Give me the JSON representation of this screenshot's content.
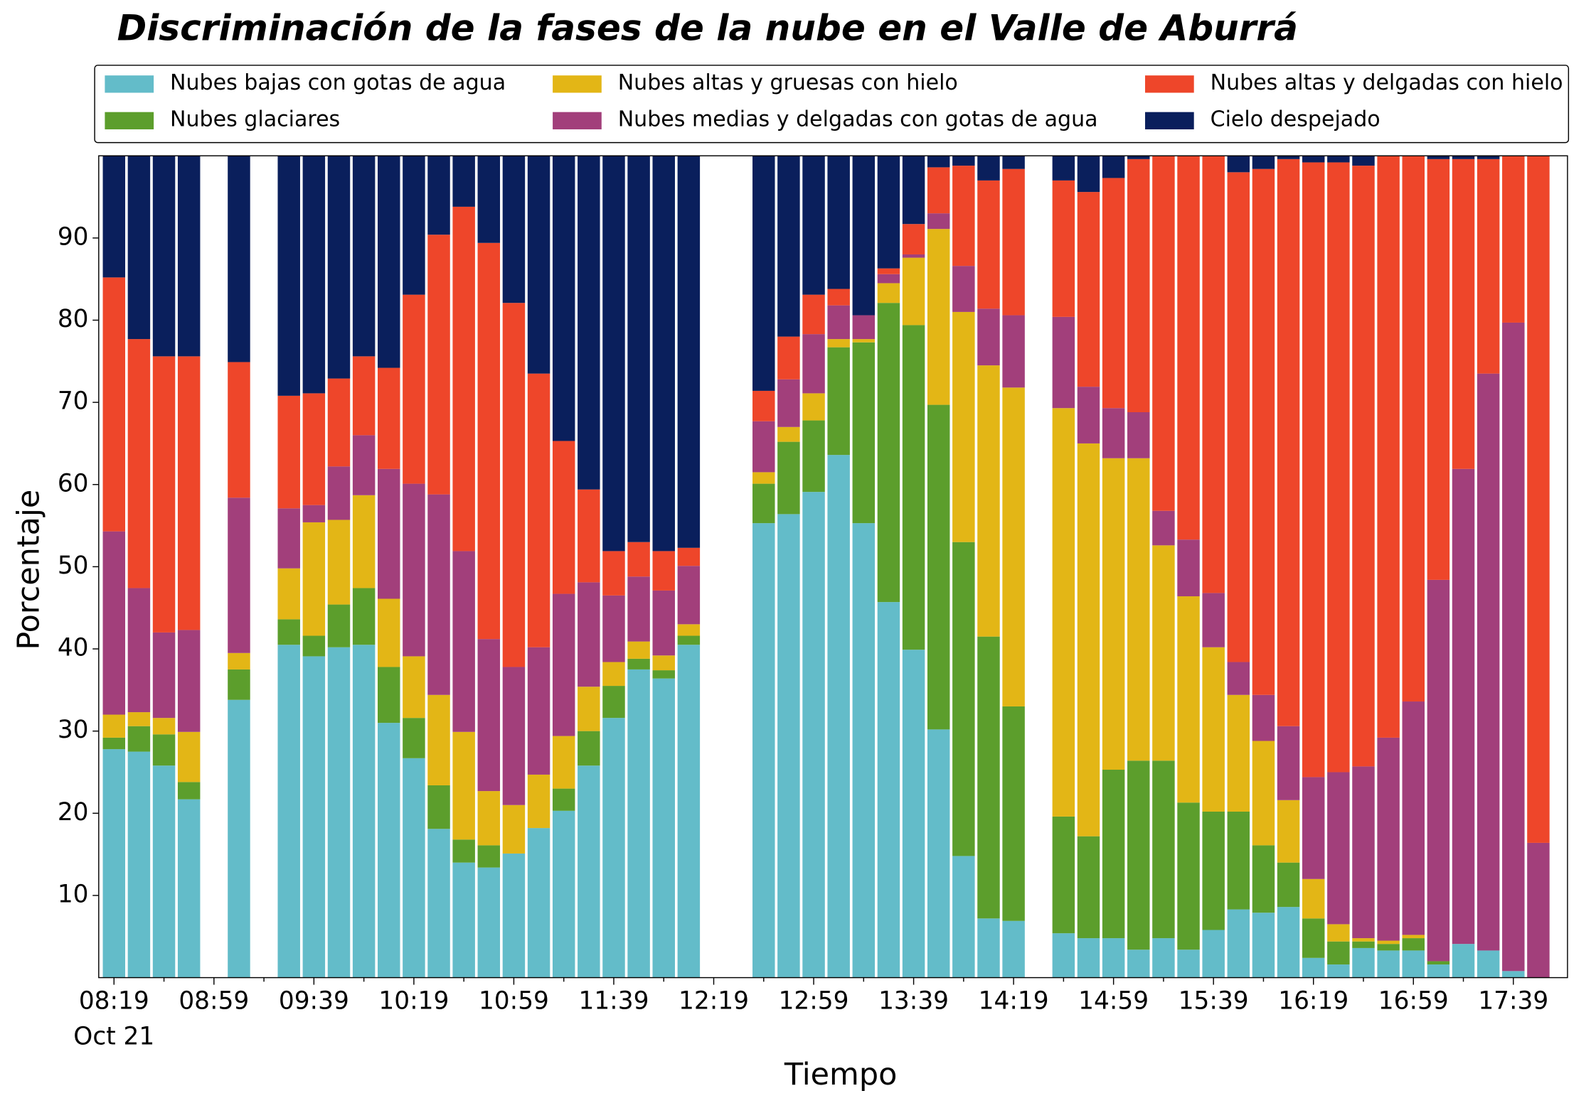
{
  "chart_data": {
    "type": "stacked_bar",
    "title": "Discriminación de la fases de la nube en el Valle de Aburrá",
    "x_label": "Tiempo",
    "y_label": "Porcentaje",
    "x_date_label": "Oct 21",
    "categories": [
      "08:19",
      null,
      null,
      null,
      "08:59",
      null,
      null,
      null,
      "09:39",
      null,
      null,
      null,
      "10:19",
      null,
      null,
      null,
      "10:59",
      null,
      null,
      null,
      "11:39",
      null,
      null,
      null,
      "12:19",
      null,
      null,
      null,
      "12:59",
      null,
      null,
      null,
      "13:39",
      null,
      null,
      null,
      "14:19",
      null,
      null,
      null,
      "14:59",
      null,
      null,
      null,
      "15:39",
      null,
      null,
      null,
      "16:19",
      null,
      null,
      null,
      "16:59",
      null,
      null,
      null,
      "17:39",
      null
    ],
    "ylim": [
      0,
      100
    ],
    "yticks": [
      10,
      20,
      30,
      40,
      50,
      60,
      70,
      80,
      90
    ],
    "legend": "top",
    "series": [
      {
        "name": "Nubes bajas con gotas de agua",
        "color": "#63bcc9",
        "values": [
          27.8,
          27.5,
          25.8,
          21.7,
          null,
          33.8,
          null,
          40.5,
          39.1,
          40.2,
          40.5,
          31,
          26.7,
          18.1,
          14.0,
          13.4,
          15.1,
          18.2,
          20.3,
          25.8,
          31.6,
          37.5,
          36.4,
          40.5,
          null,
          null,
          55.3,
          56.4,
          59.1,
          63.6,
          55.3,
          45.7,
          39.9,
          30.2,
          14.8,
          7.2,
          6.9,
          null,
          5.4,
          4.8,
          4.8,
          3.4,
          4.8,
          3.4,
          5.8,
          8.3,
          7.9,
          8.6,
          2.4,
          1.6,
          3.6,
          3.3,
          3.3,
          1.6,
          4.1,
          3.3,
          0.8,
          0
        ]
      },
      {
        "name": "Nubes glaciares",
        "color": "#5c9e2c",
        "values": [
          1.4,
          3.1,
          3.8,
          2.1,
          null,
          3.7,
          null,
          3.1,
          2.5,
          5.2,
          6.9,
          6.8,
          4.9,
          5.3,
          2.8,
          2.7,
          0,
          0,
          2.7,
          4.2,
          3.9,
          1.3,
          1.0,
          1.1,
          null,
          null,
          4.8,
          8.8,
          8.7,
          13.1,
          22.0,
          36.4,
          39.5,
          39.5,
          38.2,
          34.3,
          26.1,
          null,
          14.2,
          12.4,
          20.5,
          23.0,
          21.6,
          17.9,
          14.4,
          11.9,
          8.2,
          5.4,
          4.8,
          2.8,
          0.8,
          0.8,
          1.5,
          0.4,
          0,
          0,
          0,
          0
        ]
      },
      {
        "name": "Nubes altas y gruesas con hielo",
        "color": "#e3b616",
        "values": [
          2.8,
          1.7,
          2.0,
          6.1,
          null,
          2.0,
          null,
          6.2,
          13.8,
          10.3,
          11.3,
          8.3,
          7.5,
          11.0,
          13.1,
          6.6,
          5.9,
          6.5,
          6.4,
          5.4,
          2.9,
          2.1,
          1.8,
          1.4,
          null,
          null,
          1.4,
          1.8,
          3.3,
          1.0,
          0.4,
          2.4,
          8.2,
          21.4,
          28.0,
          33.0,
          38.8,
          null,
          49.7,
          47.8,
          37.9,
          36.8,
          26.2,
          25.1,
          20.0,
          14.2,
          12.7,
          7.6,
          4.8,
          2.1,
          0.4,
          0.4,
          0.4,
          0,
          0,
          0,
          0,
          0
        ]
      },
      {
        "name": "Nubes medias y delgadas con gotas de agua",
        "color": "#a23f7b",
        "values": [
          22.3,
          15.1,
          10.4,
          12.4,
          null,
          18.9,
          null,
          7.3,
          2.1,
          6.5,
          7.3,
          15.8,
          21.0,
          24.4,
          22.0,
          18.5,
          16.8,
          15.5,
          17.3,
          12.7,
          8.1,
          7.9,
          7.9,
          7.1,
          null,
          null,
          6.2,
          5.8,
          7.2,
          4.1,
          2.9,
          1.1,
          0.4,
          1.9,
          5.6,
          6.9,
          8.8,
          null,
          11.1,
          6.9,
          6.1,
          5.6,
          4.2,
          6.9,
          6.6,
          4.0,
          5.6,
          9.0,
          12.4,
          18.5,
          20.9,
          24.7,
          28.4,
          46.4,
          57.8,
          70.2,
          78.9,
          16.4
        ]
      },
      {
        "name": "Nubes altas y delgadas con hielo",
        "color": "#ee462a",
        "values": [
          30.9,
          30.3,
          33.6,
          33.3,
          null,
          16.5,
          null,
          13.7,
          13.6,
          10.7,
          9.6,
          12.3,
          23.0,
          31.6,
          41.9,
          48.2,
          44.3,
          33.3,
          18.6,
          11.3,
          5.4,
          4.2,
          4.8,
          2.2,
          null,
          null,
          3.7,
          5.2,
          4.8,
          2.0,
          0,
          0.7,
          3.7,
          5.6,
          12.2,
          15.6,
          17.8,
          null,
          16.6,
          23.7,
          28.0,
          30.8,
          43.2,
          46.7,
          53.2,
          59.6,
          64.0,
          69.0,
          74.8,
          74.2,
          73.1,
          70.8,
          66.4,
          51.2,
          37.7,
          26.1,
          20.3,
          83.6
        ]
      },
      {
        "name": "Cielo despejado",
        "color": "#0a1f5c",
        "values": [
          14.8,
          22.3,
          24.4,
          24.4,
          null,
          25.1,
          null,
          29.2,
          28.9,
          27.1,
          24.4,
          25.8,
          16.9,
          9.6,
          6.2,
          10.6,
          17.9,
          26.5,
          34.7,
          40.6,
          48.1,
          47.0,
          48.1,
          47.7,
          null,
          null,
          28.6,
          22.0,
          16.9,
          16.2,
          19.4,
          13.7,
          8.3,
          1.4,
          1.2,
          3.0,
          1.6,
          null,
          3.0,
          4.4,
          2.7,
          0.4,
          0,
          0,
          0,
          2.0,
          1.6,
          0.4,
          0.8,
          0.8,
          1.2,
          0,
          0,
          0.4,
          0.4,
          0.4,
          0,
          0
        ]
      }
    ]
  }
}
